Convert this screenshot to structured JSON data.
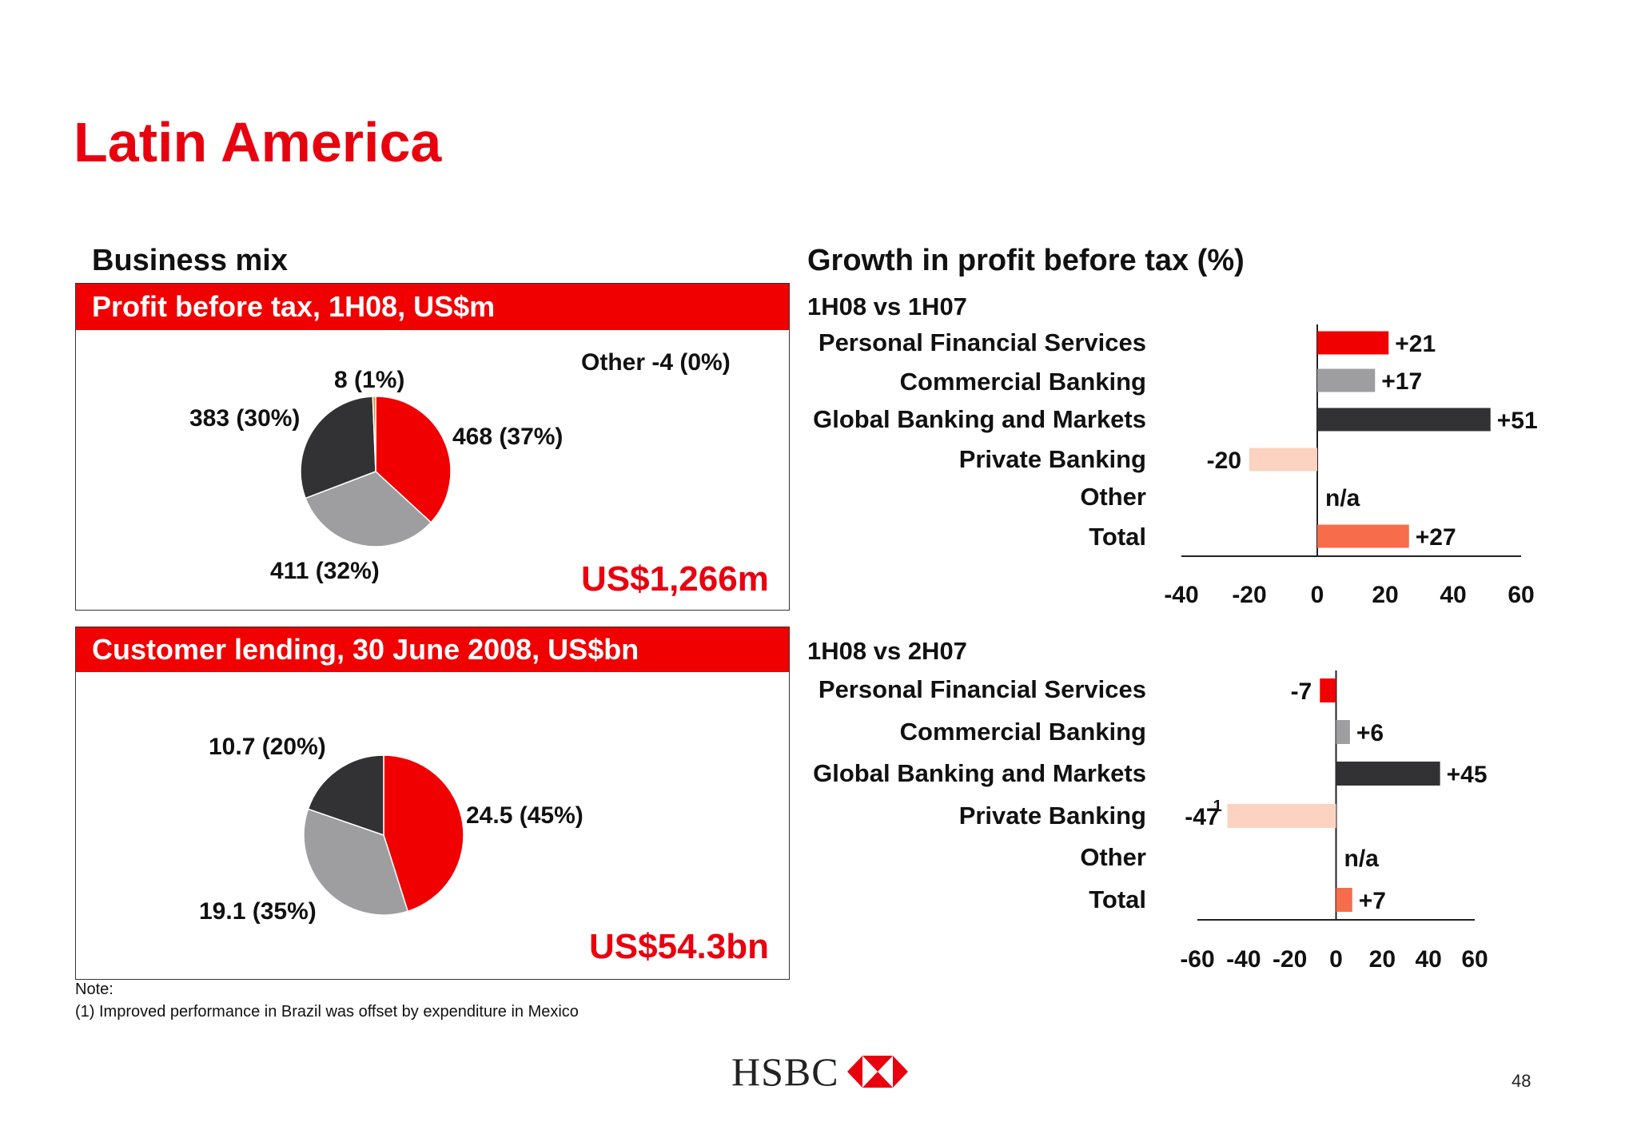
{
  "title": "Latin America",
  "left_heading": "Business mix",
  "right_heading": "Growth in profit before tax (%)",
  "panel1": {
    "header": "Profit before tax, 1H08, US$m",
    "other_label": "Other -4 (0%)",
    "total": "US$1,266m",
    "slice_labels": [
      "468  (37%)",
      "411 (32%)",
      "383  (30%)",
      "8 (1%)"
    ]
  },
  "panel2": {
    "header": "Customer lending, 30 June 2008, US$bn",
    "total": "US$54.3bn",
    "slice_labels": [
      "24.5 (45%)",
      "19.1 (35%)",
      "10.7 (20%)"
    ]
  },
  "growth": {
    "chart1_label": "1H08 vs 1H07",
    "chart2_label": "1H08 vs 2H07",
    "categories": [
      "Personal Financial Services",
      "Commercial Banking",
      "Global Banking and Markets",
      "Private Banking",
      "Other",
      "Total"
    ]
  },
  "note": {
    "title": "Note:",
    "line1": "(1) Improved performance in Brazil was offset by expenditure in Mexico"
  },
  "footer": {
    "logo": "HSBC",
    "page": "48"
  },
  "colors": {
    "red": "#f00000",
    "grey": "#9e9d9f",
    "dark": "#323133",
    "peach": "#fbd3c0",
    "salmon": "#f76d4b",
    "orange": "#e8901a"
  },
  "chart_data": [
    {
      "type": "pie",
      "title": "Profit before tax, 1H08, US$m",
      "labels": [
        "468  (37%)",
        "411 (32%)",
        "383  (30%)",
        "8 (1%)",
        "Other -4 (0%)"
      ],
      "values": [
        468,
        411,
        383,
        8,
        -4
      ],
      "percent": [
        37,
        32,
        30,
        1,
        0
      ],
      "colors": [
        "#f00000",
        "#9e9d9f",
        "#323133",
        "#e8901a",
        "#ffffff"
      ],
      "total_label": "US$1,266m"
    },
    {
      "type": "pie",
      "title": "Customer lending, 30 June 2008, US$bn",
      "labels": [
        "24.5 (45%)",
        "19.1 (35%)",
        "10.7 (20%)"
      ],
      "values": [
        24.5,
        19.1,
        10.7
      ],
      "percent": [
        45,
        35,
        20
      ],
      "colors": [
        "#f00000",
        "#9e9d9f",
        "#323133"
      ],
      "total_label": "US$54.3bn"
    },
    {
      "type": "bar",
      "orientation": "horizontal",
      "title": "1H08 vs 1H07",
      "categories": [
        "Personal Financial Services",
        "Commercial Banking",
        "Global Banking and Markets",
        "Private Banking",
        "Other",
        "Total"
      ],
      "values": [
        21,
        17,
        51,
        -20,
        null,
        27
      ],
      "value_labels": [
        "+21",
        "+17",
        "+51",
        "-20",
        "n/a",
        "+27"
      ],
      "colors": [
        "#f00000",
        "#9e9d9f",
        "#323133",
        "#fbd3c0",
        "#ffffff",
        "#f76d4b"
      ],
      "xlim": [
        -40,
        60
      ],
      "xticks": [
        "-40",
        "-20",
        "0",
        "20",
        "40",
        "60"
      ]
    },
    {
      "type": "bar",
      "orientation": "horizontal",
      "title": "1H08 vs 2H07",
      "categories": [
        "Personal Financial Services",
        "Commercial Banking",
        "Global Banking and Markets",
        "Private Banking",
        "Other",
        "Total"
      ],
      "values": [
        -7,
        6,
        45,
        -47,
        null,
        7
      ],
      "value_labels": [
        "-7",
        "+6",
        "+45",
        "-47",
        "n/a",
        "+7"
      ],
      "footnote_marks": [
        "",
        "",
        "",
        "1",
        "",
        ""
      ],
      "colors": [
        "#f00000",
        "#9e9d9f",
        "#323133",
        "#fbd3c0",
        "#ffffff",
        "#f76d4b"
      ],
      "xlim": [
        -60,
        60
      ],
      "xticks": [
        "-60",
        "-40",
        "-20",
        "0",
        "20",
        "40",
        "60"
      ]
    }
  ]
}
